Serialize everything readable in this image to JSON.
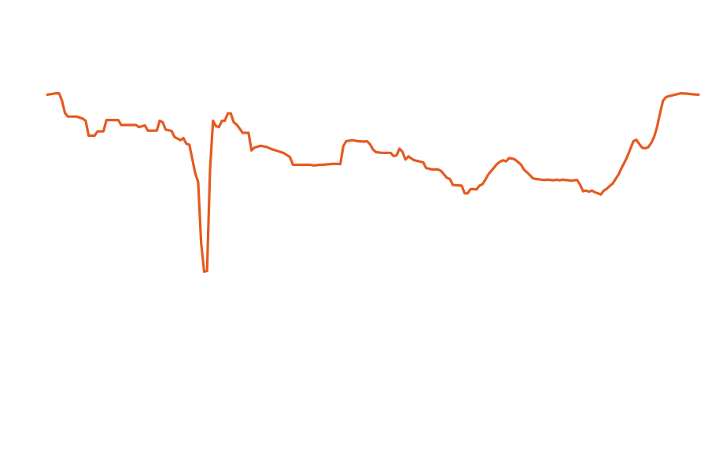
{
  "chart_data": {
    "type": "line",
    "title": "",
    "xlabel": "",
    "ylabel": "",
    "grid": false,
    "axes_visible": false,
    "legend": "none",
    "xlim": [
      0,
      220
    ],
    "ylim": [
      0,
      100
    ],
    "series": [
      {
        "color": "#e55a20",
        "points": [
          [
            0,
            89.2
          ],
          [
            3,
            89.6
          ],
          [
            4,
            89.6
          ],
          [
            5,
            87.5
          ],
          [
            6,
            84.0
          ],
          [
            7,
            83.0
          ],
          [
            10,
            83.0
          ],
          [
            12,
            82.4
          ],
          [
            13,
            81.8
          ],
          [
            14,
            77.6
          ],
          [
            16,
            77.6
          ],
          [
            17,
            78.8
          ],
          [
            19,
            78.8
          ],
          [
            20,
            82.0
          ],
          [
            24,
            82.0
          ],
          [
            25,
            80.6
          ],
          [
            30,
            80.6
          ],
          [
            31,
            80.0
          ],
          [
            33,
            80.5
          ],
          [
            34,
            79.0
          ],
          [
            37,
            79.0
          ],
          [
            38,
            81.8
          ],
          [
            39,
            81.4
          ],
          [
            40,
            79.3
          ],
          [
            42,
            78.9
          ],
          [
            43,
            77.2
          ],
          [
            45,
            76.3
          ],
          [
            46,
            76.9
          ],
          [
            47,
            75.3
          ],
          [
            48,
            75.0
          ],
          [
            49,
            71.0
          ],
          [
            50,
            66.9
          ],
          [
            51,
            64.4
          ],
          [
            52,
            47.1
          ],
          [
            53,
            39.0
          ],
          [
            54,
            39.2
          ],
          [
            55,
            67.9
          ],
          [
            56,
            81.8
          ],
          [
            57,
            80.3
          ],
          [
            58,
            80.0
          ],
          [
            59,
            81.8
          ],
          [
            60,
            81.8
          ],
          [
            61,
            83.9
          ],
          [
            62,
            83.9
          ],
          [
            63,
            81.4
          ],
          [
            64,
            80.7
          ],
          [
            65,
            79.6
          ],
          [
            66,
            78.4
          ],
          [
            68,
            78.4
          ],
          [
            69,
            73.4
          ],
          [
            70,
            74.2
          ],
          [
            72,
            74.7
          ],
          [
            74,
            74.4
          ],
          [
            76,
            73.7
          ],
          [
            78,
            73.2
          ],
          [
            80,
            72.6
          ],
          [
            82,
            71.5
          ],
          [
            83,
            69.3
          ],
          [
            85,
            69.3
          ],
          [
            86,
            69.3
          ],
          [
            88,
            69.3
          ],
          [
            89,
            69.3
          ],
          [
            90,
            69.1
          ],
          [
            92,
            69.3
          ],
          [
            93,
            69.3
          ],
          [
            94,
            69.4
          ],
          [
            97,
            69.6
          ],
          [
            99,
            69.5
          ],
          [
            100,
            74.6
          ],
          [
            101,
            76.0
          ],
          [
            103,
            76.3
          ],
          [
            105,
            76.0
          ],
          [
            107,
            75.9
          ],
          [
            108,
            76.0
          ],
          [
            109,
            75.2
          ],
          [
            110,
            73.7
          ],
          [
            111,
            72.9
          ],
          [
            113,
            72.7
          ],
          [
            116,
            72.7
          ],
          [
            117,
            71.8
          ],
          [
            118,
            72.0
          ],
          [
            119,
            73.9
          ],
          [
            120,
            73.0
          ],
          [
            121,
            70.8
          ],
          [
            122,
            71.7
          ],
          [
            123,
            71.1
          ],
          [
            124,
            70.6
          ],
          [
            125,
            70.4
          ],
          [
            127,
            70.0
          ],
          [
            128,
            68.4
          ],
          [
            130,
            68.0
          ],
          [
            132,
            68.0
          ],
          [
            133,
            67.6
          ],
          [
            134,
            66.6
          ],
          [
            135,
            65.6
          ],
          [
            136,
            65.3
          ],
          [
            137,
            63.6
          ],
          [
            140,
            63.4
          ],
          [
            141,
            61.2
          ],
          [
            142,
            61.2
          ],
          [
            143,
            62.4
          ],
          [
            144,
            62.4
          ],
          [
            145,
            62.3
          ],
          [
            146,
            63.4
          ],
          [
            147,
            63.8
          ],
          [
            148,
            65.1
          ],
          [
            149,
            66.6
          ],
          [
            150,
            67.6
          ],
          [
            151,
            68.6
          ],
          [
            152,
            69.6
          ],
          [
            153,
            70.2
          ],
          [
            154,
            70.6
          ],
          [
            155,
            70.3
          ],
          [
            156,
            71.2
          ],
          [
            157,
            71.1
          ],
          [
            158,
            70.8
          ],
          [
            159,
            70.1
          ],
          [
            160,
            69.4
          ],
          [
            161,
            68.0
          ],
          [
            162,
            67.2
          ],
          [
            163,
            66.4
          ],
          [
            164,
            65.5
          ],
          [
            165,
            65.3
          ],
          [
            166,
            65.2
          ],
          [
            167,
            65.1
          ],
          [
            168,
            65.0
          ],
          [
            169,
            65.1
          ],
          [
            170,
            65.0
          ],
          [
            171,
            64.9
          ],
          [
            172,
            65.1
          ],
          [
            173,
            64.9
          ],
          [
            174,
            65.1
          ],
          [
            175,
            65.0
          ],
          [
            176,
            64.9
          ],
          [
            177,
            64.8
          ],
          [
            178,
            64.9
          ],
          [
            179,
            65.0
          ],
          [
            180,
            63.6
          ],
          [
            181,
            61.8
          ],
          [
            182,
            62.0
          ],
          [
            183,
            61.7
          ],
          [
            184,
            62.0
          ],
          [
            185,
            61.5
          ],
          [
            186,
            61.2
          ],
          [
            187,
            60.9
          ],
          [
            188,
            62.0
          ],
          [
            189,
            62.5
          ],
          [
            190,
            63.3
          ],
          [
            191,
            64.0
          ],
          [
            192,
            65.3
          ],
          [
            193,
            66.6
          ],
          [
            194,
            68.4
          ],
          [
            195,
            70.0
          ],
          [
            196,
            71.8
          ],
          [
            197,
            73.9
          ],
          [
            198,
            76.0
          ],
          [
            199,
            76.4
          ],
          [
            200,
            75.2
          ],
          [
            201,
            74.1
          ],
          [
            202,
            74.0
          ],
          [
            203,
            74.3
          ],
          [
            204,
            75.5
          ],
          [
            205,
            77.2
          ],
          [
            206,
            80.1
          ],
          [
            207,
            84.0
          ],
          [
            208,
            87.5
          ],
          [
            209,
            88.5
          ],
          [
            210,
            88.8
          ],
          [
            212,
            89.2
          ],
          [
            214,
            89.6
          ],
          [
            216,
            89.5
          ],
          [
            218,
            89.3
          ],
          [
            220,
            89.2
          ]
        ]
      }
    ]
  }
}
